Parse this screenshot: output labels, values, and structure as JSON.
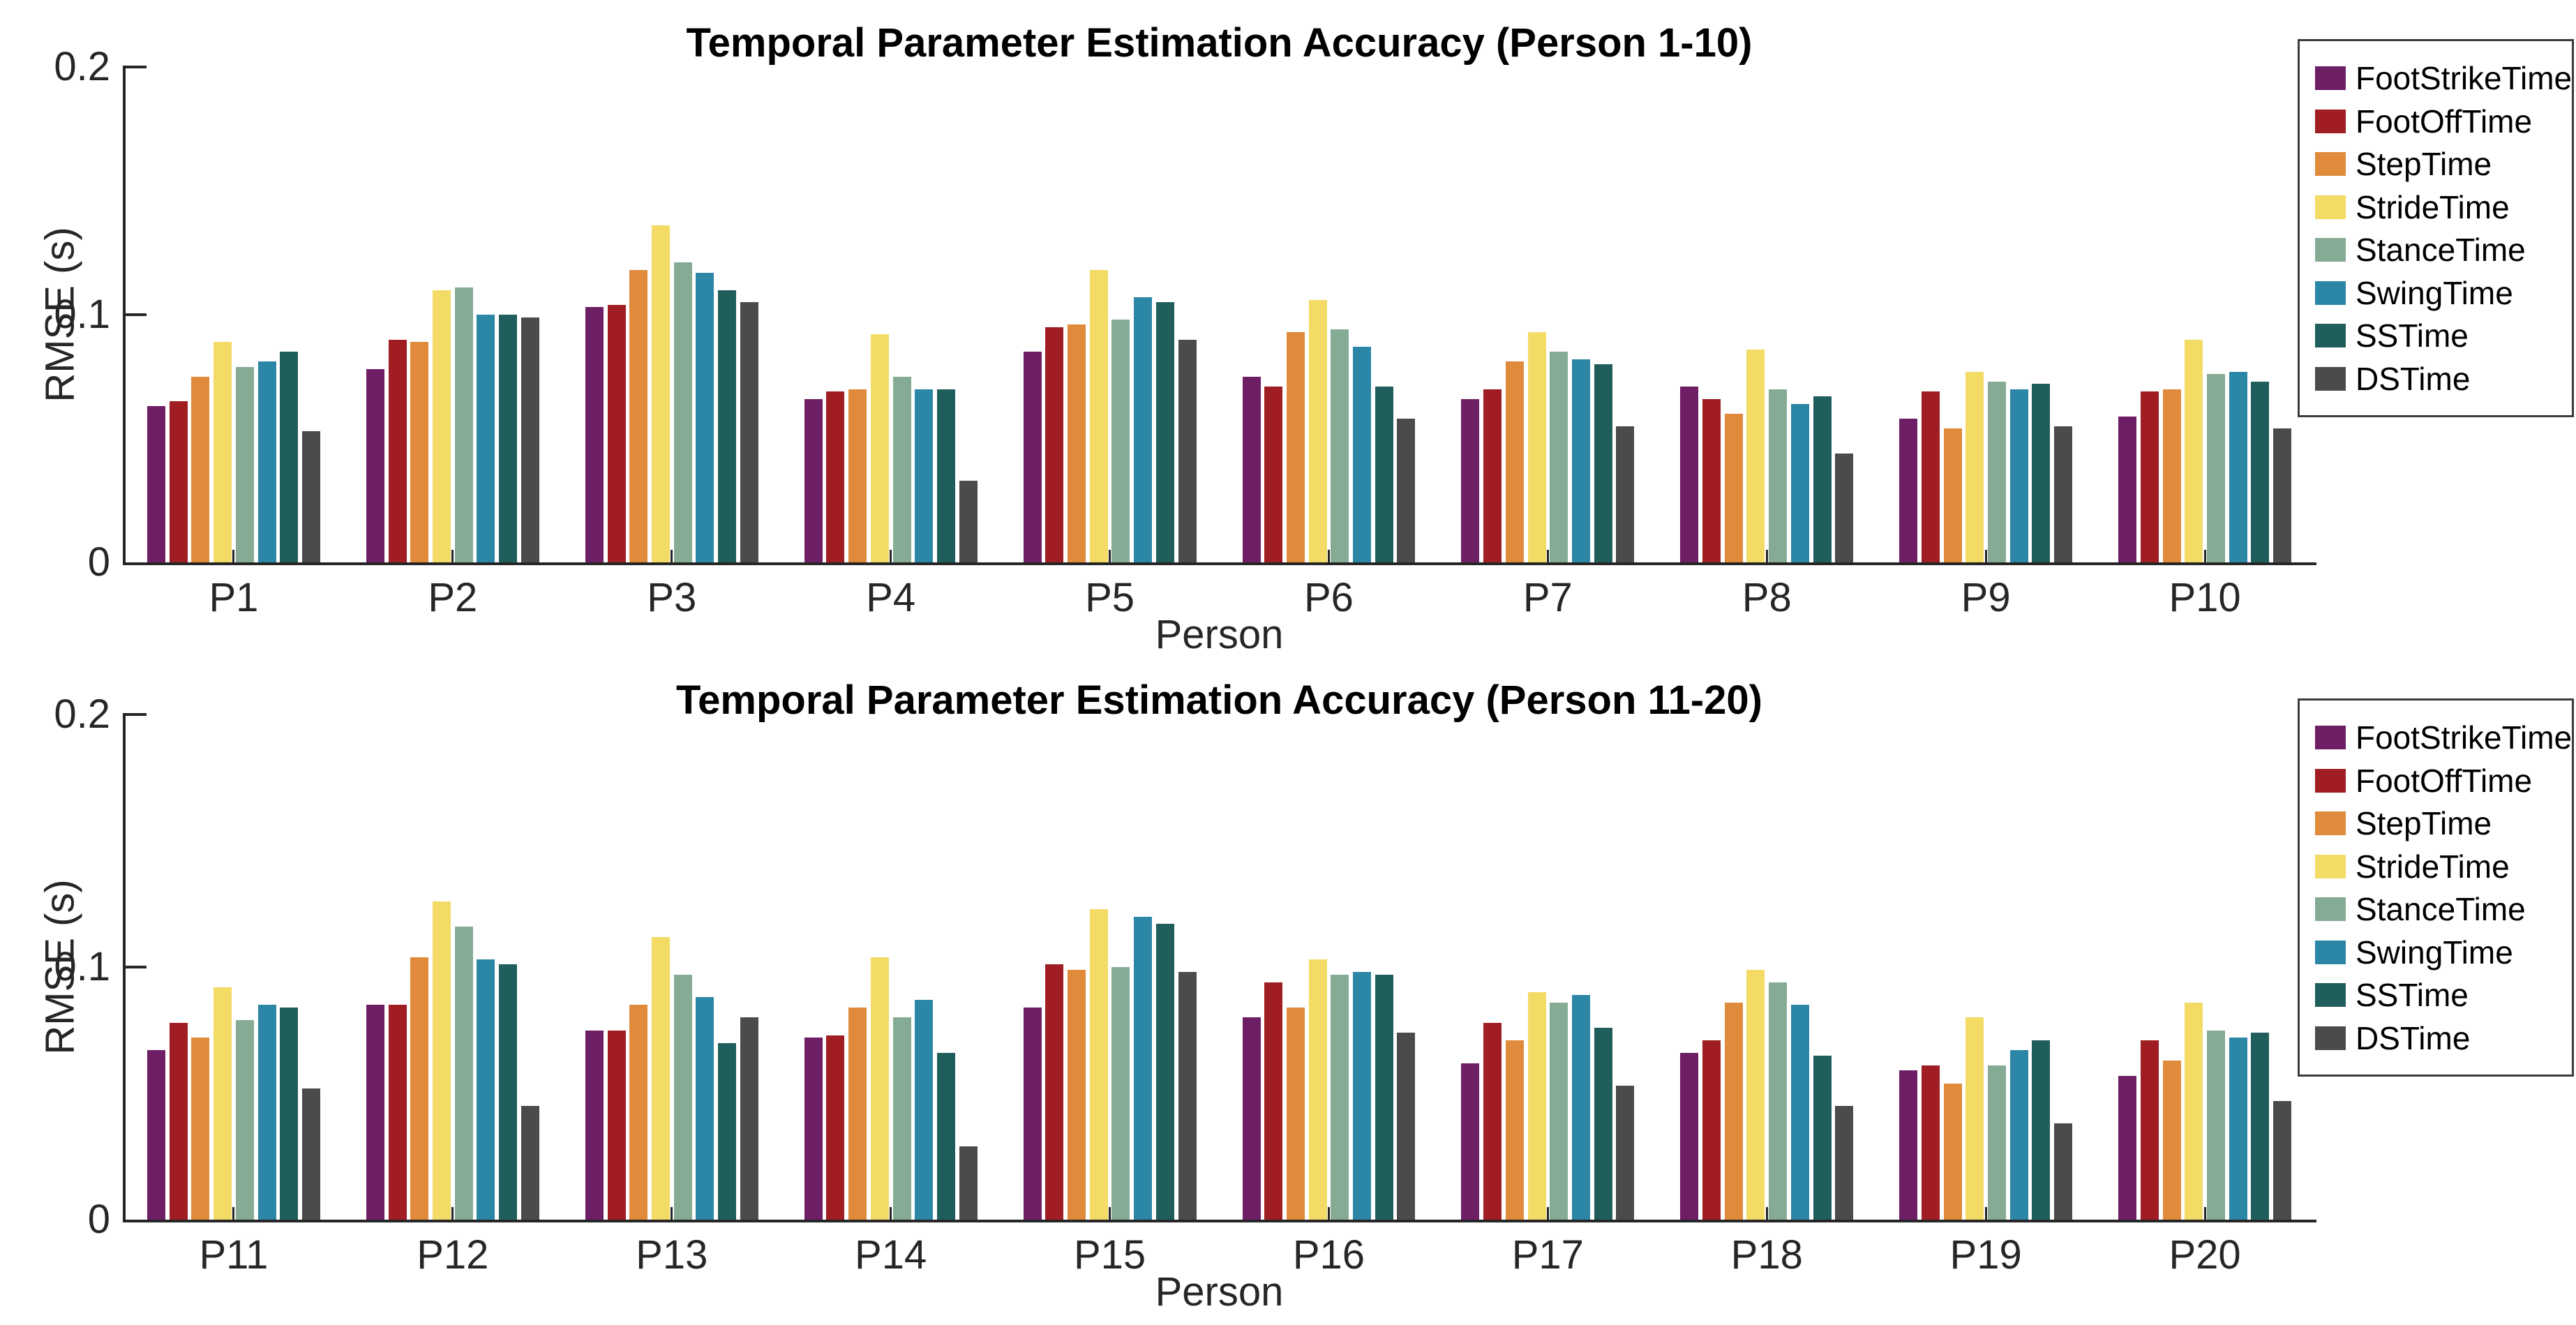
{
  "page": {
    "background": "#ffffff",
    "text_color": "#262626",
    "axis_color": "#262626"
  },
  "chart_data": [
    {
      "type": "bar",
      "title": "Temporal Parameter Estimation Accuracy (Person 1-10)",
      "xlabel": "Person",
      "ylabel": "RMSE (s)",
      "ylim": [
        0,
        0.2
      ],
      "yticks": [
        "0",
        "0.1",
        "0.2"
      ],
      "grid": false,
      "legend_position": "upper-right-outside",
      "categories": [
        "P1",
        "P2",
        "P3",
        "P4",
        "P5",
        "P6",
        "P7",
        "P8",
        "P9",
        "P10"
      ],
      "series": [
        {
          "name": "FootStrikeTime",
          "color": "#6D1E64",
          "values": [
            0.063,
            0.078,
            0.103,
            0.066,
            0.085,
            0.075,
            0.066,
            0.071,
            0.058,
            0.059
          ]
        },
        {
          "name": "FootOffTime",
          "color": "#A01D23",
          "values": [
            0.065,
            0.09,
            0.104,
            0.069,
            0.095,
            0.071,
            0.07,
            0.066,
            0.069,
            0.069
          ]
        },
        {
          "name": "StepTime",
          "color": "#E08A3C",
          "values": [
            0.075,
            0.089,
            0.118,
            0.07,
            0.096,
            0.093,
            0.081,
            0.06,
            0.054,
            0.07
          ]
        },
        {
          "name": "StrideTime",
          "color": "#F3DB66",
          "values": [
            0.089,
            0.11,
            0.136,
            0.092,
            0.118,
            0.106,
            0.093,
            0.086,
            0.077,
            0.09
          ]
        },
        {
          "name": "StanceTime",
          "color": "#86AB94",
          "values": [
            0.079,
            0.111,
            0.121,
            0.075,
            0.098,
            0.094,
            0.085,
            0.07,
            0.073,
            0.076
          ]
        },
        {
          "name": "SwingTime",
          "color": "#2C86A5",
          "values": [
            0.081,
            0.1,
            0.117,
            0.07,
            0.107,
            0.087,
            0.082,
            0.064,
            0.07,
            0.077
          ]
        },
        {
          "name": "SSTime",
          "color": "#205E5B",
          "values": [
            0.085,
            0.1,
            0.11,
            0.07,
            0.105,
            0.071,
            0.08,
            0.067,
            0.072,
            0.073
          ]
        },
        {
          "name": "DSTime",
          "color": "#4B4B4B",
          "values": [
            0.053,
            0.099,
            0.105,
            0.033,
            0.09,
            0.058,
            0.055,
            0.044,
            0.055,
            0.054
          ]
        }
      ]
    },
    {
      "type": "bar",
      "title": "Temporal Parameter Estimation Accuracy (Person 11-20)",
      "xlabel": "Person",
      "ylabel": "RMSE (s)",
      "ylim": [
        0,
        0.2
      ],
      "yticks": [
        "0",
        "0.1",
        "0.2"
      ],
      "grid": false,
      "legend_position": "upper-right-outside",
      "categories": [
        "P11",
        "P12",
        "P13",
        "P14",
        "P15",
        "P16",
        "P17",
        "P18",
        "P19",
        "P20"
      ],
      "series": [
        {
          "name": "FootStrikeTime",
          "color": "#6D1E64",
          "values": [
            0.067,
            0.085,
            0.075,
            0.072,
            0.084,
            0.08,
            0.062,
            0.066,
            0.059,
            0.057
          ]
        },
        {
          "name": "FootOffTime",
          "color": "#A01D23",
          "values": [
            0.078,
            0.085,
            0.075,
            0.073,
            0.101,
            0.094,
            0.078,
            0.071,
            0.061,
            0.071
          ]
        },
        {
          "name": "StepTime",
          "color": "#E08A3C",
          "values": [
            0.072,
            0.104,
            0.085,
            0.084,
            0.099,
            0.084,
            0.071,
            0.086,
            0.054,
            0.063
          ]
        },
        {
          "name": "StrideTime",
          "color": "#F3DB66",
          "values": [
            0.092,
            0.126,
            0.112,
            0.104,
            0.123,
            0.103,
            0.09,
            0.099,
            0.08,
            0.086
          ]
        },
        {
          "name": "StanceTime",
          "color": "#86AB94",
          "values": [
            0.079,
            0.116,
            0.097,
            0.08,
            0.1,
            0.097,
            0.086,
            0.094,
            0.061,
            0.075
          ]
        },
        {
          "name": "SwingTime",
          "color": "#2C86A5",
          "values": [
            0.085,
            0.103,
            0.088,
            0.087,
            0.12,
            0.098,
            0.089,
            0.085,
            0.067,
            0.072
          ]
        },
        {
          "name": "SSTime",
          "color": "#205E5B",
          "values": [
            0.084,
            0.101,
            0.07,
            0.066,
            0.117,
            0.097,
            0.076,
            0.065,
            0.071,
            0.074
          ]
        },
        {
          "name": "DSTime",
          "color": "#4B4B4B",
          "values": [
            0.052,
            0.045,
            0.08,
            0.029,
            0.098,
            0.074,
            0.053,
            0.045,
            0.038,
            0.047
          ]
        }
      ]
    }
  ]
}
